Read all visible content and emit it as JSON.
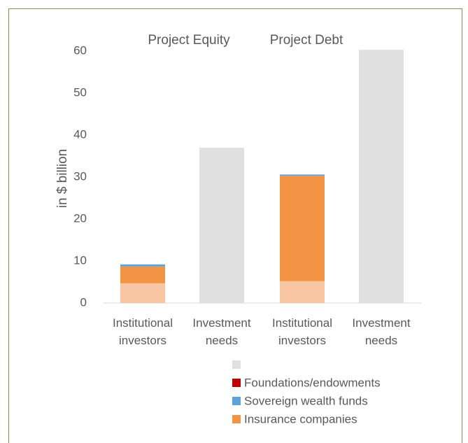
{
  "chart_data": {
    "type": "stacked_bar",
    "annotations": [
      "Project Equity",
      "Project Debt"
    ],
    "y_label": "in $ billion",
    "categories": [
      "Institutional investors",
      "Investment needs",
      "Institutional investors",
      "Investment needs"
    ],
    "series": [
      {
        "color": "#f8c6a2",
        "values": [
          4.7,
          null,
          5.2,
          null
        ]
      },
      {
        "name": "Insurance companies",
        "color": "#f39444",
        "values": [
          4.0,
          null,
          25.1,
          null
        ]
      },
      {
        "name": "Sovereign wealth funds",
        "color": "#5ba3d9",
        "values": [
          0.5,
          null,
          0.3,
          null
        ]
      },
      {
        "name": "Foundations/endowments",
        "color": "#c00000",
        "values": [
          0,
          null,
          0,
          null
        ]
      },
      {
        "color": "#e0e0e0",
        "values": [
          null,
          37,
          null,
          60.3
        ]
      }
    ],
    "ylim": [
      0,
      60
    ],
    "yticks": [
      0,
      10,
      20,
      30,
      40,
      50,
      60
    ]
  }
}
